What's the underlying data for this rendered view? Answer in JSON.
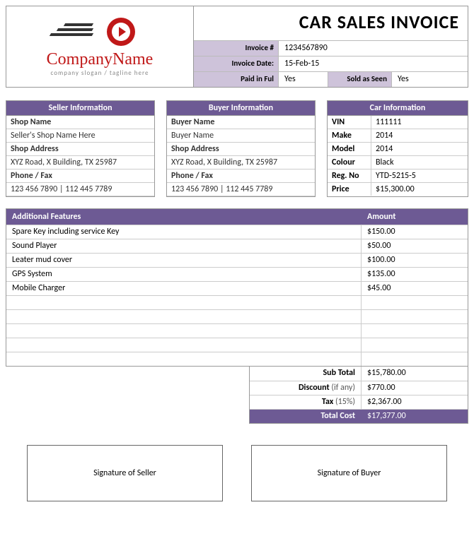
{
  "colors": {
    "purple": "#6d5a94",
    "purple_light": "#cec3da",
    "logo_red": "#c01818",
    "border": "#999999"
  },
  "header": {
    "company_name": "CompanyName",
    "slogan": "company slogan / tagline here",
    "title": "CAR SALES INVOICE",
    "meta": {
      "invoice_no_label": "Invoice #",
      "invoice_no": "1234567890",
      "invoice_date_label": "Invoice Date:",
      "invoice_date": "15-Feb-15",
      "paid_label": "Paid in Ful",
      "paid_value": "Yes",
      "sold_label": "Sold as Seen",
      "sold_value": "Yes"
    }
  },
  "seller": {
    "title": "Seller Information",
    "name_label": "Shop Name",
    "name": "Seller's Shop Name Here",
    "address_label": "Shop Address",
    "address": "XYZ Road, X Building, TX 25987",
    "phone_label": "Phone / Fax",
    "phone": "123 456 7890 | 112 445 7789"
  },
  "buyer": {
    "title": "Buyer Information",
    "name_label": "Buyer Name",
    "name": "Buyer Name",
    "address_label": "Shop Address",
    "address": "XYZ Road, X Building, TX 25987",
    "phone_label": "Phone / Fax",
    "phone": "123 456 7890 | 112 445 7789"
  },
  "car": {
    "title": "Car Information",
    "rows": [
      {
        "label": "VIN",
        "value": "111111"
      },
      {
        "label": "Make",
        "value": "2014"
      },
      {
        "label": "Model",
        "value": "2014"
      },
      {
        "label": "Colour",
        "value": "Black"
      },
      {
        "label": "Reg. No",
        "value": "YTD-5215-5"
      },
      {
        "label": "Price",
        "value": "$15,300.00"
      }
    ]
  },
  "features": {
    "header_desc": "Additional Features",
    "header_amt": "Amount",
    "rows": [
      {
        "desc": "Spare Key including service Key",
        "amount": "$150.00"
      },
      {
        "desc": "Sound Player",
        "amount": "$50.00"
      },
      {
        "desc": "Leater mud cover",
        "amount": "$100.00"
      },
      {
        "desc": "GPS System",
        "amount": "$135.00"
      },
      {
        "desc": "Mobile Charger",
        "amount": "$45.00"
      },
      {
        "desc": "",
        "amount": ""
      },
      {
        "desc": "",
        "amount": ""
      },
      {
        "desc": "",
        "amount": ""
      },
      {
        "desc": "",
        "amount": ""
      },
      {
        "desc": "",
        "amount": ""
      }
    ]
  },
  "totals": {
    "subtotal_label": "Sub Total",
    "subtotal": "$15,780.00",
    "discount_label": "Discount",
    "discount_hint": " (if any)",
    "discount": "$770.00",
    "tax_label": "Tax",
    "tax_hint": " (15%)",
    "tax": "$2,367.00",
    "total_label": "Total Cost",
    "total": "$17,377.00"
  },
  "signatures": {
    "seller": "Signature of Seller",
    "buyer": "Signature of Buyer"
  }
}
